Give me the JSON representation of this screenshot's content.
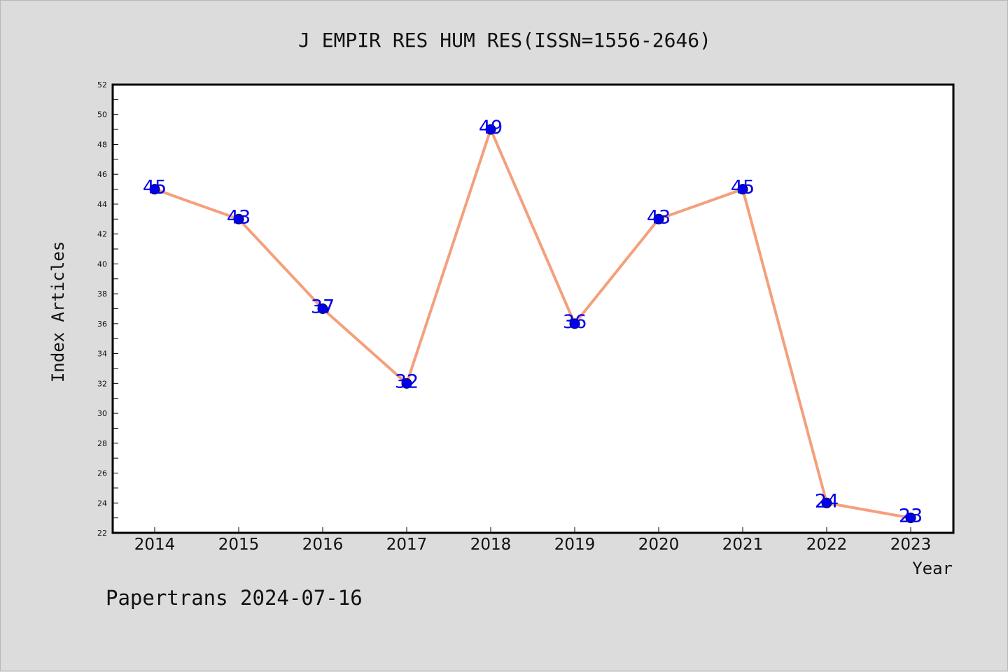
{
  "chart_data": {
    "type": "line",
    "title": "J EMPIR RES HUM RES(ISSN=1556-2646)",
    "xlabel": "Year",
    "ylabel": "Index Articles",
    "categories": [
      "2014",
      "2015",
      "2016",
      "2017",
      "2018",
      "2019",
      "2020",
      "2021",
      "2022",
      "2023"
    ],
    "values": [
      45,
      43,
      37,
      32,
      49,
      36,
      43,
      45,
      24,
      23
    ],
    "data_labels": [
      "45",
      "43",
      "37",
      "32",
      "49",
      "36",
      "43",
      "45",
      "24",
      "23"
    ],
    "ylim": [
      22,
      52
    ],
    "yticks": [
      "22",
      "24",
      "26",
      "28",
      "30",
      "32",
      "34",
      "36",
      "38",
      "40",
      "42",
      "44",
      "46",
      "48",
      "50",
      "52"
    ],
    "line_color": "#f4a07c",
    "marker_color": "#0000ee",
    "label_color": "#0000ee",
    "grid": false,
    "legend": "none"
  },
  "footer": {
    "text": "Papertrans 2024-07-16"
  }
}
